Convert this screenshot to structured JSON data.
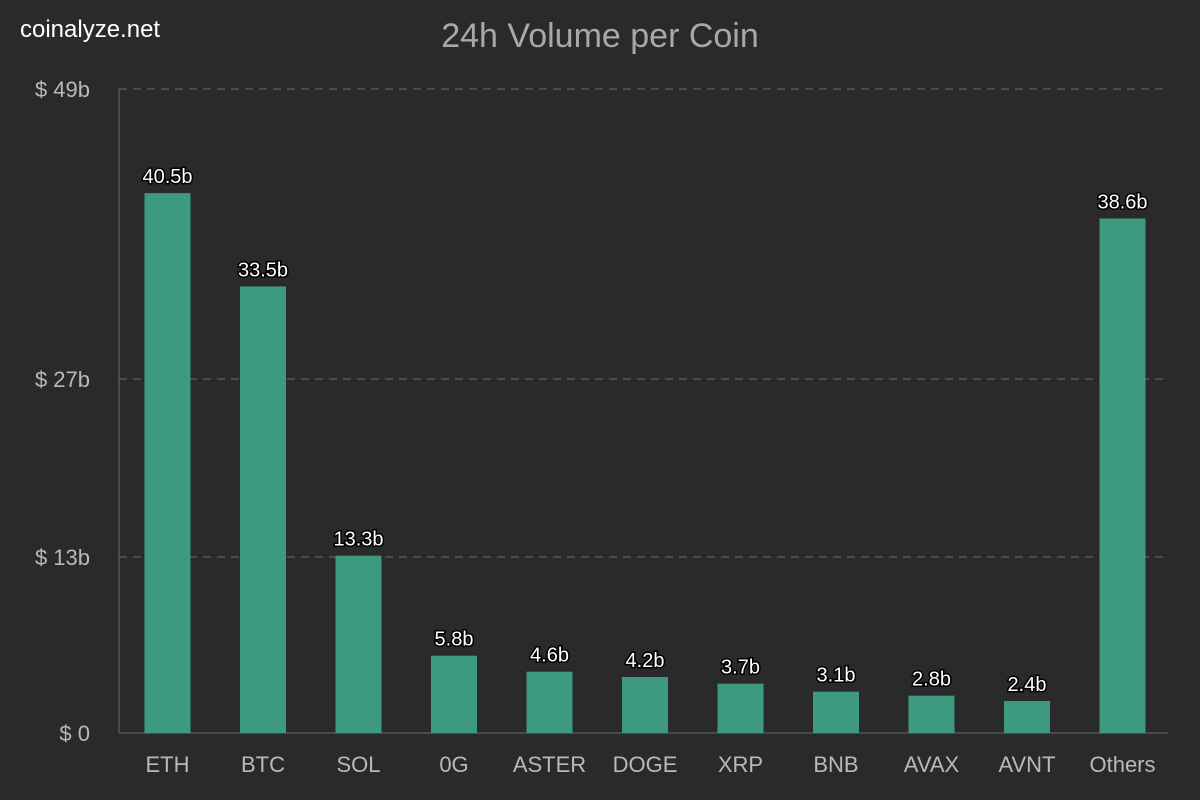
{
  "brand": "coinalyze.net",
  "colors": {
    "background": "#2a2a2a",
    "bar": "#3d9a80",
    "grid": "#555555",
    "axis_text": "#b9b9b9",
    "title_text": "#a8a8a8",
    "label_text": "#ffffff"
  },
  "chart_data": {
    "type": "bar",
    "title": "24h Volume per Coin",
    "categories": [
      "ETH",
      "BTC",
      "SOL",
      "0G",
      "ASTER",
      "DOGE",
      "XRP",
      "BNB",
      "AVAX",
      "AVNT",
      "Others"
    ],
    "values": [
      40.5,
      33.5,
      13.3,
      5.8,
      4.6,
      4.2,
      3.7,
      3.1,
      2.8,
      2.4,
      38.6
    ],
    "data_labels": [
      "40.5b",
      "33.5b",
      "13.3b",
      "5.8b",
      "4.6b",
      "4.2b",
      "3.7b",
      "3.1b",
      "2.8b",
      "2.4b",
      "38.6b"
    ],
    "y_ticks": [
      {
        "value": 0,
        "label": "$ 0"
      },
      {
        "value": 13,
        "label": "$ 13b"
      },
      {
        "value": 27,
        "label": "$ 27b"
      },
      {
        "value": 49,
        "label": "$ 49b"
      }
    ],
    "ylim": [
      0,
      49
    ],
    "y_scale": "non-linear",
    "grid": true,
    "legend": "none"
  }
}
